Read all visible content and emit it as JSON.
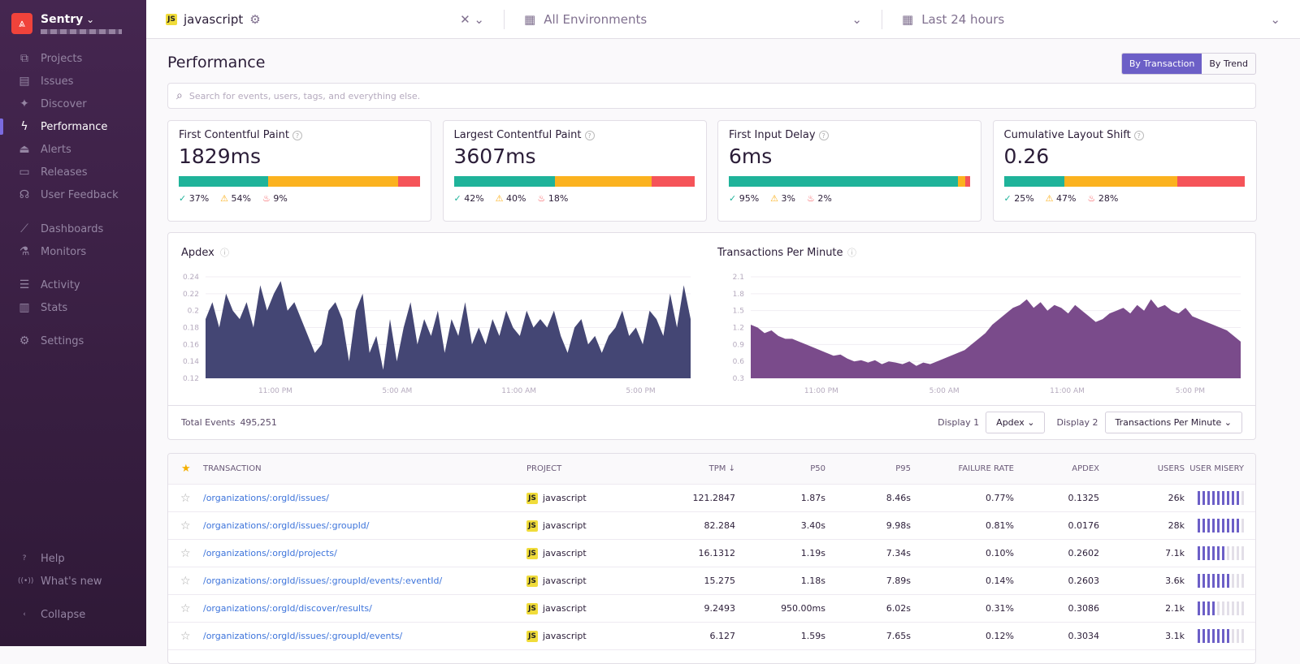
{
  "sidebar": {
    "org": "Sentry",
    "items": [
      {
        "label": "Projects",
        "icon": "projects-icon",
        "glyph": "⧉"
      },
      {
        "label": "Issues",
        "icon": "issues-icon",
        "glyph": "▤"
      },
      {
        "label": "Discover",
        "icon": "discover-icon",
        "glyph": "✦"
      },
      {
        "label": "Performance",
        "icon": "lightning-icon",
        "glyph": "ϟ",
        "active": true
      },
      {
        "label": "Alerts",
        "icon": "siren-icon",
        "glyph": "⏏"
      },
      {
        "label": "Releases",
        "icon": "releases-icon",
        "glyph": "▭"
      },
      {
        "label": "User Feedback",
        "icon": "headset-icon",
        "glyph": "☊"
      },
      {
        "label": "Dashboards",
        "icon": "graph-icon",
        "glyph": "⟋"
      },
      {
        "label": "Monitors",
        "icon": "flask-icon",
        "glyph": "⚗"
      },
      {
        "label": "Activity",
        "icon": "list-icon",
        "glyph": "☰"
      },
      {
        "label": "Stats",
        "icon": "stats-icon",
        "glyph": "▥"
      },
      {
        "label": "Settings",
        "icon": "gear-icon",
        "glyph": "⚙"
      }
    ],
    "bottom": [
      {
        "label": "Help",
        "icon": "help-icon",
        "glyph": "?"
      },
      {
        "label": "What's new",
        "icon": "broadcast-icon",
        "glyph": "((•))"
      },
      {
        "label": "Collapse",
        "icon": "collapse-icon",
        "glyph": "‹"
      }
    ]
  },
  "topbar": {
    "project": "javascript",
    "environment": "All Environments",
    "period": "Last 24 hours"
  },
  "page": {
    "title": "Performance",
    "by_transaction": "By Transaction",
    "by_trend": "By Trend",
    "search_placeholder": "Search for events, users, tags, and everything else."
  },
  "colors": {
    "good": "#1fb39a",
    "meh": "#fbb21f",
    "poor": "#f55459",
    "apdex": "#444674",
    "tpm": "#7a4b8b",
    "accent": "#6c5fc7"
  },
  "vitals": [
    {
      "title": "First Contentful Paint",
      "value": "1829ms",
      "good": 37,
      "meh": 54,
      "poor": 9
    },
    {
      "title": "Largest Contentful Paint",
      "value": "3607ms",
      "good": 42,
      "meh": 40,
      "poor": 18
    },
    {
      "title": "First Input Delay",
      "value": "6ms",
      "good": 95,
      "meh": 3,
      "poor": 2
    },
    {
      "title": "Cumulative Layout Shift",
      "value": "0.26",
      "good": 25,
      "meh": 47,
      "poor": 28
    }
  ],
  "chart_data": [
    {
      "type": "area",
      "title": "Apdex",
      "ylim": [
        0.12,
        0.24
      ],
      "yticks": [
        "0.24",
        "0.22",
        "0.2",
        "0.18",
        "0.16",
        "0.14",
        "0.12"
      ],
      "xticks": [
        "11:00 PM",
        "5:00 AM",
        "11:00 AM",
        "5:00 PM"
      ],
      "grid": true,
      "values": [
        0.19,
        0.21,
        0.18,
        0.22,
        0.2,
        0.19,
        0.21,
        0.18,
        0.23,
        0.2,
        0.22,
        0.235,
        0.2,
        0.21,
        0.19,
        0.17,
        0.15,
        0.16,
        0.2,
        0.21,
        0.19,
        0.14,
        0.2,
        0.22,
        0.15,
        0.17,
        0.13,
        0.19,
        0.14,
        0.18,
        0.21,
        0.16,
        0.19,
        0.17,
        0.2,
        0.15,
        0.19,
        0.17,
        0.21,
        0.16,
        0.18,
        0.16,
        0.19,
        0.17,
        0.2,
        0.18,
        0.17,
        0.2,
        0.18,
        0.19,
        0.18,
        0.2,
        0.17,
        0.15,
        0.18,
        0.19,
        0.16,
        0.17,
        0.15,
        0.17,
        0.18,
        0.2,
        0.17,
        0.18,
        0.16,
        0.2,
        0.19,
        0.17,
        0.22,
        0.18,
        0.23,
        0.19
      ]
    },
    {
      "type": "area",
      "title": "Transactions Per Minute",
      "ylim": [
        0.3,
        2.1
      ],
      "yticks": [
        "2.1",
        "1.8",
        "1.5",
        "1.2",
        "0.9",
        "0.6",
        "0.3"
      ],
      "xticks": [
        "11:00 PM",
        "5:00 AM",
        "11:00 AM",
        "5:00 PM"
      ],
      "grid": true,
      "values": [
        1.25,
        1.2,
        1.1,
        1.15,
        1.05,
        1.0,
        1.0,
        0.95,
        0.9,
        0.85,
        0.8,
        0.75,
        0.7,
        0.72,
        0.65,
        0.6,
        0.62,
        0.58,
        0.62,
        0.55,
        0.6,
        0.58,
        0.55,
        0.6,
        0.52,
        0.58,
        0.55,
        0.6,
        0.65,
        0.7,
        0.75,
        0.8,
        0.9,
        1.0,
        1.1,
        1.25,
        1.35,
        1.45,
        1.55,
        1.6,
        1.7,
        1.55,
        1.65,
        1.5,
        1.6,
        1.55,
        1.45,
        1.6,
        1.5,
        1.4,
        1.3,
        1.35,
        1.45,
        1.5,
        1.55,
        1.45,
        1.6,
        1.5,
        1.7,
        1.55,
        1.6,
        1.5,
        1.45,
        1.55,
        1.4,
        1.35,
        1.3,
        1.25,
        1.2,
        1.15,
        1.05,
        0.95
      ]
    }
  ],
  "summary": {
    "total_label": "Total Events",
    "total": "495,251",
    "display1_label": "Display 1",
    "display1": "Apdex",
    "display2_label": "Display 2",
    "display2": "Transactions Per Minute"
  },
  "table": {
    "headers": [
      "Transaction",
      "Project",
      "TPM ↓",
      "P50",
      "P95",
      "Failure Rate",
      "Apdex",
      "Users",
      "User Misery"
    ],
    "rows": [
      {
        "transaction": "/organizations/:orgId/issues/",
        "project": "javascript",
        "tpm": "121.2847",
        "p50": "1.87s",
        "p95": "8.46s",
        "failure": "0.77%",
        "apdex": "0.1325",
        "users": "26k",
        "misery": 9
      },
      {
        "transaction": "/organizations/:orgId/issues/:groupId/",
        "project": "javascript",
        "tpm": "82.284",
        "p50": "3.40s",
        "p95": "9.98s",
        "failure": "0.81%",
        "apdex": "0.0176",
        "users": "28k",
        "misery": 9
      },
      {
        "transaction": "/organizations/:orgId/projects/",
        "project": "javascript",
        "tpm": "16.1312",
        "p50": "1.19s",
        "p95": "7.34s",
        "failure": "0.10%",
        "apdex": "0.2602",
        "users": "7.1k",
        "misery": 6
      },
      {
        "transaction": "/organizations/:orgId/issues/:groupId/events/:eventId/",
        "project": "javascript",
        "tpm": "15.275",
        "p50": "1.18s",
        "p95": "7.89s",
        "failure": "0.14%",
        "apdex": "0.2603",
        "users": "3.6k",
        "misery": 7
      },
      {
        "transaction": "/organizations/:orgId/discover/results/",
        "project": "javascript",
        "tpm": "9.2493",
        "p50": "950.00ms",
        "p95": "6.02s",
        "failure": "0.31%",
        "apdex": "0.3086",
        "users": "2.1k",
        "misery": 4
      },
      {
        "transaction": "/organizations/:orgId/issues/:groupId/events/",
        "project": "javascript",
        "tpm": "6.127",
        "p50": "1.59s",
        "p95": "7.65s",
        "failure": "0.12%",
        "apdex": "0.3034",
        "users": "3.1k",
        "misery": 7
      }
    ]
  }
}
